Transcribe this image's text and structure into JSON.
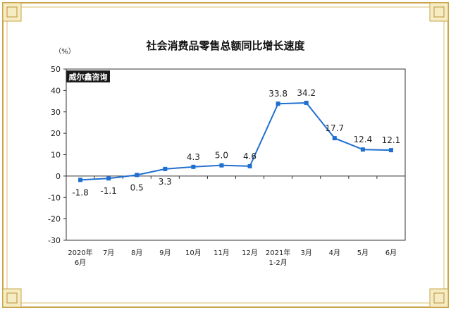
{
  "watermark": "威尔鑫咨询",
  "chart_data": {
    "type": "line",
    "title": "社会消费品零售总额同比增长速度",
    "unit_label": "（%）",
    "categories": [
      [
        "2020年",
        "6月"
      ],
      [
        "7月"
      ],
      [
        "8月"
      ],
      [
        "9月"
      ],
      [
        "10月"
      ],
      [
        "11月"
      ],
      [
        "12月"
      ],
      [
        "2021年",
        "1-2月"
      ],
      [
        "3月"
      ],
      [
        "4月"
      ],
      [
        "5月"
      ],
      [
        "6月"
      ]
    ],
    "values": [
      -1.8,
      -1.1,
      0.5,
      3.3,
      4.3,
      5.0,
      4.6,
      33.8,
      34.2,
      17.7,
      12.4,
      12.1
    ],
    "data_labels": [
      "-1.8",
      "-1.1",
      "0.5",
      "3.3",
      "4.3",
      "5.0",
      "4.6",
      "33.8",
      "34.2",
      "17.7",
      "12.4",
      "12.1"
    ],
    "ylim": [
      -30,
      50
    ],
    "yticks": [
      50,
      40,
      30,
      20,
      10,
      0,
      -10,
      -20,
      -30
    ],
    "series_color": "#1f6fd1",
    "grid": false,
    "legend": "none"
  }
}
